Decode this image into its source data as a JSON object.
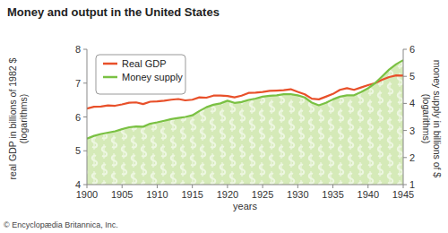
{
  "chart_data": {
    "type": "line",
    "title": "Money and output in the United States",
    "xlabel": "years",
    "ylabel": "real GDP in billions of 1982 $ (logarithms)",
    "y2label": "money supply in billions of $ (logarithms)",
    "annotations": [
      "© Encyclopædia Britannica, Inc."
    ],
    "x": [
      1900,
      1901,
      1902,
      1903,
      1904,
      1905,
      1906,
      1907,
      1908,
      1909,
      1910,
      1911,
      1912,
      1913,
      1914,
      1915,
      1916,
      1917,
      1918,
      1919,
      1920,
      1921,
      1922,
      1923,
      1924,
      1925,
      1926,
      1927,
      1928,
      1929,
      1930,
      1931,
      1932,
      1933,
      1934,
      1935,
      1936,
      1937,
      1938,
      1939,
      1940,
      1941,
      1942,
      1943,
      1944,
      1945
    ],
    "series": [
      {
        "name": "Real GDP",
        "color": "#e8502a",
        "type": "line",
        "values": [
          6.25,
          6.3,
          6.31,
          6.34,
          6.33,
          6.37,
          6.42,
          6.43,
          6.38,
          6.45,
          6.46,
          6.48,
          6.51,
          6.53,
          6.49,
          6.51,
          6.58,
          6.57,
          6.63,
          6.63,
          6.62,
          6.58,
          6.63,
          6.71,
          6.72,
          6.74,
          6.77,
          6.78,
          6.79,
          6.82,
          6.74,
          6.67,
          6.54,
          6.52,
          6.6,
          6.68,
          6.8,
          6.85,
          6.8,
          6.87,
          6.94,
          7.0,
          7.1,
          7.18,
          7.23,
          7.22
        ]
      },
      {
        "name": "Money supply",
        "color": "#7ac143",
        "type": "area",
        "axis": "y2",
        "values": [
          2.7,
          2.8,
          2.87,
          2.92,
          2.97,
          3.05,
          3.12,
          3.15,
          3.14,
          3.25,
          3.3,
          3.36,
          3.42,
          3.46,
          3.5,
          3.56,
          3.72,
          3.86,
          3.95,
          4.0,
          4.1,
          4.02,
          4.05,
          4.13,
          4.18,
          4.25,
          4.28,
          4.3,
          4.34,
          4.34,
          4.3,
          4.22,
          4.03,
          3.93,
          4.02,
          4.15,
          4.25,
          4.3,
          4.3,
          4.42,
          4.56,
          4.75,
          5.0,
          5.25,
          5.45,
          5.6
        ]
      }
    ],
    "xlim": [
      1900,
      1945
    ],
    "xticks": [
      1900,
      1905,
      1910,
      1915,
      1920,
      1925,
      1930,
      1935,
      1940,
      1945
    ],
    "ylim": [
      4,
      8
    ],
    "yticks": [
      4,
      5,
      6,
      7,
      8
    ],
    "y2lim": [
      1,
      6
    ],
    "y2ticks": [
      1,
      2,
      3,
      4,
      5,
      6
    ],
    "grid": false,
    "legend": "upper left"
  }
}
